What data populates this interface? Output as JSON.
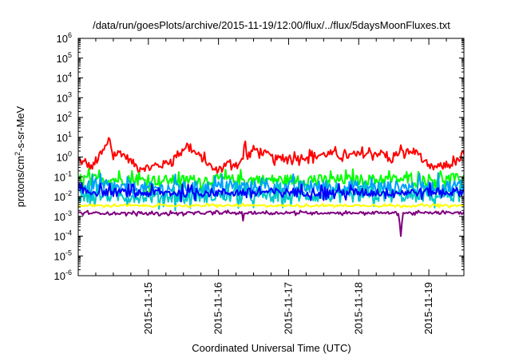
{
  "chart_data": {
    "type": "line",
    "title": "/data/run/goesPlots/archive/2015-11-19/12:00/flux/../flux/5daysMoonFluxes.txt",
    "xlabel": "Coordinated Universal Time (UTC)",
    "ylabel": {
      "pre": "protons/cm",
      "sup": "2",
      "post": "-s-sr-MeV"
    },
    "y_scale": "log",
    "ylim": [
      1e-06,
      1000000.0
    ],
    "x_range_days": [
      "2015-11-14T00:00",
      "2015-11-19T12:00"
    ],
    "y_ticks": [
      {
        "base": "10",
        "exp": "-6"
      },
      {
        "base": "10",
        "exp": "-5"
      },
      {
        "base": "10",
        "exp": "-4"
      },
      {
        "base": "10",
        "exp": "-3"
      },
      {
        "base": "10",
        "exp": "-2"
      },
      {
        "base": "10",
        "exp": "-1"
      },
      {
        "base": "10",
        "exp": "0"
      },
      {
        "base": "10",
        "exp": "1"
      },
      {
        "base": "10",
        "exp": "2"
      },
      {
        "base": "10",
        "exp": "3"
      },
      {
        "base": "10",
        "exp": "4"
      },
      {
        "base": "10",
        "exp": "5"
      },
      {
        "base": "10",
        "exp": "6"
      }
    ],
    "x_ticks": [
      "2015-11-15",
      "2015-11-16",
      "2015-11-17",
      "2015-11-18",
      "2015-11-19"
    ],
    "grid": false,
    "legend": "none",
    "series": [
      {
        "color": "#ff0000",
        "base_curve": [
          [
            0,
            0.7
          ],
          [
            0.2,
            0.3
          ],
          [
            0.45,
            6
          ],
          [
            0.5,
            1.2
          ],
          [
            0.6,
            1.8
          ],
          [
            0.7,
            0.9
          ],
          [
            0.85,
            0.3
          ],
          [
            1.0,
            0.3
          ],
          [
            1.2,
            0.4
          ],
          [
            1.35,
            0.8
          ],
          [
            1.55,
            4
          ],
          [
            1.65,
            1.8
          ],
          [
            1.8,
            0.7
          ],
          [
            1.95,
            0.2
          ],
          [
            2.1,
            0.4
          ],
          [
            2.3,
            0.5
          ],
          [
            2.4,
            1.0
          ],
          [
            2.5,
            2.5
          ],
          [
            2.6,
            2.0
          ],
          [
            2.8,
            0.8
          ],
          [
            3.0,
            0.9
          ],
          [
            3.2,
            1.0
          ],
          [
            3.4,
            1.2
          ],
          [
            3.6,
            1.5
          ],
          [
            3.8,
            1.1
          ],
          [
            4.0,
            1.3
          ],
          [
            4.2,
            1.6
          ],
          [
            4.35,
            1.5
          ],
          [
            4.45,
            0.6
          ],
          [
            4.55,
            1.5
          ],
          [
            4.85,
            2.0
          ],
          [
            4.95,
            0.3
          ],
          [
            5.1,
            0.3
          ],
          [
            5.3,
            0.4
          ],
          [
            5.4,
            0.6
          ],
          [
            5.5,
            1.0
          ]
        ],
        "spikes": [
          [
            0.44,
            12
          ],
          [
            2.38,
            7
          ],
          [
            4.6,
            4
          ]
        ],
        "noise": 0.32
      },
      {
        "color": "#00ff00",
        "base_curve": [
          [
            0,
            0.08
          ],
          [
            1.0,
            0.065
          ],
          [
            2.0,
            0.07
          ],
          [
            3.0,
            0.07
          ],
          [
            4.0,
            0.07
          ],
          [
            5.0,
            0.075
          ],
          [
            5.5,
            0.08
          ]
        ],
        "dips": [],
        "noise": 0.45
      },
      {
        "color": "#00a0ff",
        "base_curve": [
          [
            0,
            0.03
          ],
          [
            1.0,
            0.025
          ],
          [
            2.0,
            0.03
          ],
          [
            3.0,
            0.03
          ],
          [
            4.0,
            0.03
          ],
          [
            5.0,
            0.03
          ],
          [
            5.5,
            0.035
          ]
        ],
        "dips": [],
        "noise": 0.55
      },
      {
        "color": "#00c8c8",
        "base_curve": [
          [
            0,
            0.012
          ],
          [
            1.0,
            0.01
          ],
          [
            2.0,
            0.011
          ],
          [
            3.0,
            0.011
          ],
          [
            4.0,
            0.011
          ],
          [
            5.0,
            0.011
          ],
          [
            5.5,
            0.012
          ]
        ],
        "dips": [],
        "noise": 0.55
      },
      {
        "color": "#0000ff",
        "base_curve": [
          [
            0,
            0.018
          ],
          [
            1.0,
            0.015
          ],
          [
            2.0,
            0.016
          ],
          [
            3.0,
            0.017
          ],
          [
            4.0,
            0.016
          ],
          [
            5.0,
            0.017
          ],
          [
            5.5,
            0.018
          ]
        ],
        "dips": [],
        "noise": 0.35
      },
      {
        "color": "#ffff00",
        "base_curve": [
          [
            0,
            0.0035
          ],
          [
            5.5,
            0.0035
          ]
        ],
        "dips": [],
        "noise": 0.08
      },
      {
        "color": "#800080",
        "base_curve": [
          [
            0,
            0.0015
          ],
          [
            1.0,
            0.0014
          ],
          [
            2.0,
            0.0015
          ],
          [
            3.0,
            0.0015
          ],
          [
            4.0,
            0.0015
          ],
          [
            5.0,
            0.0015
          ],
          [
            5.5,
            0.0015
          ]
        ],
        "dips": [
          [
            2.35,
            0.0006
          ],
          [
            4.6,
            0.0001
          ]
        ],
        "noise": 0.1
      }
    ]
  }
}
